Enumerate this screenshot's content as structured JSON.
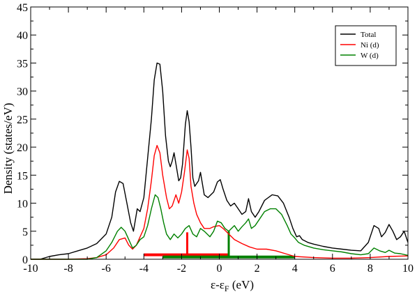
{
  "chart_data": {
    "type": "line",
    "xlabel_main": "ε-ε",
    "xlabel_sub": "F",
    "xlabel_unit": " (eV)",
    "ylabel": "Density (states/eV)",
    "xlim": [
      -10,
      10
    ],
    "ylim": [
      0,
      45
    ],
    "xticks": [
      "-10",
      "-8",
      "-6",
      "-4",
      "-2",
      "0",
      "2",
      "4",
      "6",
      "8",
      "10"
    ],
    "yticks": [
      "0",
      "5",
      "10",
      "15",
      "20",
      "25",
      "30",
      "35",
      "40",
      "45"
    ],
    "legend_position": "top-right",
    "series": [
      {
        "name": "Total",
        "color": "#000000",
        "points": [
          [
            -10,
            0
          ],
          [
            -9.5,
            0
          ],
          [
            -9.0,
            0.5
          ],
          [
            -8.5,
            0.8
          ],
          [
            -8.0,
            1.0
          ],
          [
            -7.5,
            1.5
          ],
          [
            -7.0,
            2.0
          ],
          [
            -6.5,
            2.8
          ],
          [
            -6.0,
            4.5
          ],
          [
            -5.7,
            7.5
          ],
          [
            -5.5,
            12.0
          ],
          [
            -5.3,
            13.9
          ],
          [
            -5.1,
            13.5
          ],
          [
            -4.9,
            10.0
          ],
          [
            -4.7,
            6.5
          ],
          [
            -4.55,
            5.0
          ],
          [
            -4.45,
            7.0
          ],
          [
            -4.35,
            9.0
          ],
          [
            -4.2,
            8.5
          ],
          [
            -4.0,
            11.0
          ],
          [
            -3.8,
            18.0
          ],
          [
            -3.6,
            25.0
          ],
          [
            -3.45,
            32.0
          ],
          [
            -3.3,
            35.0
          ],
          [
            -3.15,
            34.8
          ],
          [
            -3.0,
            30.0
          ],
          [
            -2.85,
            22.0
          ],
          [
            -2.7,
            17.5
          ],
          [
            -2.6,
            16.5
          ],
          [
            -2.5,
            17.5
          ],
          [
            -2.4,
            19.0
          ],
          [
            -2.3,
            17.0
          ],
          [
            -2.15,
            14.0
          ],
          [
            -2.05,
            14.5
          ],
          [
            -1.95,
            17.0
          ],
          [
            -1.8,
            24.0
          ],
          [
            -1.7,
            26.5
          ],
          [
            -1.6,
            24.5
          ],
          [
            -1.5,
            20.0
          ],
          [
            -1.4,
            14.5
          ],
          [
            -1.3,
            13.0
          ],
          [
            -1.1,
            14.0
          ],
          [
            -1.0,
            15.5
          ],
          [
            -0.9,
            13.5
          ],
          [
            -0.8,
            11.5
          ],
          [
            -0.6,
            11.0
          ],
          [
            -0.3,
            12.0
          ],
          [
            -0.1,
            13.8
          ],
          [
            0.05,
            14.2
          ],
          [
            0.2,
            12.5
          ],
          [
            0.4,
            10.5
          ],
          [
            0.6,
            9.5
          ],
          [
            0.8,
            10.0
          ],
          [
            1.0,
            9.0
          ],
          [
            1.2,
            8.0
          ],
          [
            1.4,
            8.5
          ],
          [
            1.55,
            10.8
          ],
          [
            1.7,
            8.5
          ],
          [
            1.9,
            7.5
          ],
          [
            2.1,
            8.5
          ],
          [
            2.4,
            10.5
          ],
          [
            2.8,
            11.5
          ],
          [
            3.1,
            11.3
          ],
          [
            3.4,
            10.0
          ],
          [
            3.7,
            7.5
          ],
          [
            3.9,
            5.5
          ],
          [
            4.1,
            4.0
          ],
          [
            4.25,
            4.2
          ],
          [
            4.4,
            3.5
          ],
          [
            4.7,
            3.0
          ],
          [
            5.0,
            2.7
          ],
          [
            5.5,
            2.3
          ],
          [
            6.0,
            2.0
          ],
          [
            6.5,
            1.8
          ],
          [
            7.0,
            1.6
          ],
          [
            7.5,
            1.5
          ],
          [
            7.9,
            3.0
          ],
          [
            8.2,
            6.0
          ],
          [
            8.45,
            5.5
          ],
          [
            8.6,
            4.0
          ],
          [
            8.8,
            4.8
          ],
          [
            9.0,
            6.2
          ],
          [
            9.2,
            5.0
          ],
          [
            9.4,
            3.5
          ],
          [
            9.6,
            4.0
          ],
          [
            9.8,
            5.0
          ],
          [
            10.0,
            3.0
          ]
        ]
      },
      {
        "name": "Ni (d)",
        "color": "#ff0000",
        "points": [
          [
            -10,
            0
          ],
          [
            -8.0,
            0
          ],
          [
            -7.0,
            0.1
          ],
          [
            -6.5,
            0.3
          ],
          [
            -6.0,
            0.8
          ],
          [
            -5.6,
            2.0
          ],
          [
            -5.3,
            3.5
          ],
          [
            -5.0,
            3.8
          ],
          [
            -4.8,
            2.5
          ],
          [
            -4.6,
            1.8
          ],
          [
            -4.4,
            2.5
          ],
          [
            -4.2,
            4.0
          ],
          [
            -4.0,
            5.5
          ],
          [
            -3.8,
            9.0
          ],
          [
            -3.6,
            14.0
          ],
          [
            -3.45,
            18.5
          ],
          [
            -3.3,
            20.3
          ],
          [
            -3.15,
            19.0
          ],
          [
            -3.0,
            15.0
          ],
          [
            -2.8,
            11.0
          ],
          [
            -2.65,
            9.0
          ],
          [
            -2.5,
            9.5
          ],
          [
            -2.3,
            11.5
          ],
          [
            -2.15,
            10.0
          ],
          [
            -2.0,
            12.0
          ],
          [
            -1.85,
            15.5
          ],
          [
            -1.7,
            19.5
          ],
          [
            -1.6,
            18.0
          ],
          [
            -1.5,
            13.0
          ],
          [
            -1.35,
            10.0
          ],
          [
            -1.2,
            8.0
          ],
          [
            -1.0,
            6.5
          ],
          [
            -0.8,
            5.5
          ],
          [
            -0.5,
            5.5
          ],
          [
            -0.3,
            5.8
          ],
          [
            0.0,
            6.0
          ],
          [
            0.2,
            5.5
          ],
          [
            0.5,
            4.5
          ],
          [
            0.8,
            3.5
          ],
          [
            1.2,
            2.8
          ],
          [
            1.6,
            2.2
          ],
          [
            2.0,
            1.8
          ],
          [
            2.5,
            1.8
          ],
          [
            3.0,
            1.5
          ],
          [
            3.5,
            1.0
          ],
          [
            4.0,
            0.5
          ],
          [
            5.0,
            0.3
          ],
          [
            6.0,
            0.2
          ],
          [
            7.0,
            0.2
          ],
          [
            8.0,
            0.3
          ],
          [
            9.0,
            0.5
          ],
          [
            10.0,
            0.6
          ]
        ]
      },
      {
        "name": "W (d)",
        "color": "#008000",
        "points": [
          [
            -10,
            0
          ],
          [
            -7.0,
            0
          ],
          [
            -6.5,
            0.3
          ],
          [
            -6.0,
            1.5
          ],
          [
            -5.7,
            3.0
          ],
          [
            -5.4,
            5.0
          ],
          [
            -5.2,
            5.7
          ],
          [
            -5.0,
            5.0
          ],
          [
            -4.8,
            3.5
          ],
          [
            -4.6,
            2.0
          ],
          [
            -4.4,
            2.5
          ],
          [
            -4.2,
            3.5
          ],
          [
            -4.0,
            4.0
          ],
          [
            -3.8,
            6.0
          ],
          [
            -3.6,
            9.0
          ],
          [
            -3.4,
            11.5
          ],
          [
            -3.25,
            11.0
          ],
          [
            -3.1,
            9.0
          ],
          [
            -2.95,
            6.5
          ],
          [
            -2.8,
            4.5
          ],
          [
            -2.6,
            3.5
          ],
          [
            -2.4,
            4.5
          ],
          [
            -2.2,
            3.8
          ],
          [
            -2.0,
            4.5
          ],
          [
            -1.8,
            5.5
          ],
          [
            -1.6,
            6.0
          ],
          [
            -1.4,
            4.5
          ],
          [
            -1.2,
            4.0
          ],
          [
            -1.0,
            5.5
          ],
          [
            -0.8,
            5.0
          ],
          [
            -0.5,
            4.0
          ],
          [
            -0.3,
            5.0
          ],
          [
            -0.1,
            6.8
          ],
          [
            0.1,
            6.5
          ],
          [
            0.3,
            5.5
          ],
          [
            0.5,
            5.0
          ],
          [
            0.8,
            6.0
          ],
          [
            1.0,
            5.0
          ],
          [
            1.2,
            5.8
          ],
          [
            1.4,
            6.5
          ],
          [
            1.55,
            7.2
          ],
          [
            1.7,
            5.5
          ],
          [
            1.9,
            6.0
          ],
          [
            2.1,
            7.0
          ],
          [
            2.4,
            8.5
          ],
          [
            2.7,
            9.0
          ],
          [
            3.0,
            9.0
          ],
          [
            3.3,
            8.0
          ],
          [
            3.6,
            6.0
          ],
          [
            3.8,
            4.5
          ],
          [
            4.0,
            3.8
          ],
          [
            4.2,
            3.0
          ],
          [
            4.5,
            2.5
          ],
          [
            5.0,
            2.0
          ],
          [
            5.5,
            1.7
          ],
          [
            6.0,
            1.5
          ],
          [
            6.5,
            1.3
          ],
          [
            7.0,
            1.0
          ],
          [
            7.5,
            0.8
          ],
          [
            7.9,
            1.0
          ],
          [
            8.2,
            2.0
          ],
          [
            8.5,
            1.5
          ],
          [
            8.8,
            1.2
          ],
          [
            9.0,
            1.6
          ],
          [
            9.3,
            1.1
          ],
          [
            9.6,
            1.0
          ],
          [
            10.0,
            0.7
          ]
        ]
      }
    ],
    "markers": [
      {
        "color": "#ff0000",
        "bar_from": -4.0,
        "bar_to": 0.5,
        "bar_y": 0.8,
        "tick_x": -1.7,
        "tick_top": 4.8
      },
      {
        "color": "#008000",
        "bar_from": -3.0,
        "bar_to": 4.0,
        "bar_y": 0.4,
        "tick_x": 0.5,
        "tick_top": 5.0
      }
    ]
  }
}
